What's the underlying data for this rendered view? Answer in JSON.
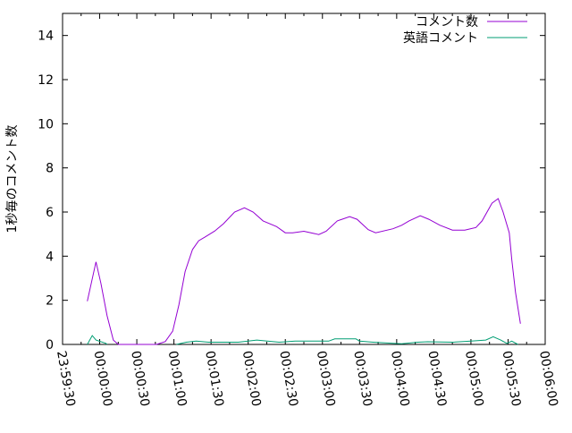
{
  "chart_data": {
    "type": "line",
    "title": "",
    "xlabel": "",
    "ylabel": "1秒毎のコメント数",
    "xlim": [
      "23:59:30",
      "00:06:00"
    ],
    "ylim": [
      0,
      15
    ],
    "x_ticks": [
      "23:59:30",
      "00:00:00",
      "00:00:30",
      "00:01:00",
      "00:01:30",
      "00:02:00",
      "00:02:30",
      "00:03:00",
      "00:03:30",
      "00:04:00",
      "00:04:30",
      "00:05:00",
      "00:05:30",
      "00:06:00"
    ],
    "y_ticks": [
      "0",
      "2",
      "4",
      "6",
      "8",
      "10",
      "12",
      "14"
    ],
    "legend_position": "top-right",
    "grid": false,
    "series": [
      {
        "name": "コメント数",
        "color": "#9400d3",
        "points": [
          [
            "23:59:50",
            1.96
          ],
          [
            "23:59:57",
            3.74
          ],
          [
            "00:00:01",
            2.77
          ],
          [
            "00:00:06",
            1.3
          ],
          [
            "00:00:11",
            0.2
          ],
          [
            "00:00:15",
            0
          ],
          [
            "00:00:46",
            0
          ],
          [
            "00:00:53",
            0.13
          ],
          [
            "00:00:59",
            0.6
          ],
          [
            "00:01:04",
            1.8
          ],
          [
            "00:01:09",
            3.3
          ],
          [
            "00:01:15",
            4.3
          ],
          [
            "00:01:20",
            4.7
          ],
          [
            "00:01:25",
            4.86
          ],
          [
            "00:01:33",
            5.14
          ],
          [
            "00:01:40",
            5.47
          ],
          [
            "00:01:49",
            6.0
          ],
          [
            "00:01:57",
            6.19
          ],
          [
            "00:02:04",
            6.0
          ],
          [
            "00:02:12",
            5.6
          ],
          [
            "00:02:23",
            5.34
          ],
          [
            "00:02:30",
            5.06
          ],
          [
            "00:02:36",
            5.06
          ],
          [
            "00:02:45",
            5.13
          ],
          [
            "00:02:54",
            5.02
          ],
          [
            "00:02:57",
            4.98
          ],
          [
            "00:03:03",
            5.13
          ],
          [
            "00:03:12",
            5.6
          ],
          [
            "00:03:22",
            5.79
          ],
          [
            "00:03:28",
            5.67
          ],
          [
            "00:03:37",
            5.2
          ],
          [
            "00:03:43",
            5.06
          ],
          [
            "00:03:57",
            5.24
          ],
          [
            "00:04:04",
            5.4
          ],
          [
            "00:04:10",
            5.6
          ],
          [
            "00:04:19",
            5.83
          ],
          [
            "00:04:26",
            5.67
          ],
          [
            "00:04:35",
            5.4
          ],
          [
            "00:04:45",
            5.18
          ],
          [
            "00:04:55",
            5.18
          ],
          [
            "00:05:04",
            5.3
          ],
          [
            "00:05:09",
            5.6
          ],
          [
            "00:05:17",
            6.4
          ],
          [
            "00:05:22",
            6.61
          ],
          [
            "00:05:26",
            6.0
          ],
          [
            "00:05:31",
            5.06
          ],
          [
            "00:05:33",
            3.85
          ],
          [
            "00:05:36",
            2.36
          ],
          [
            "00:05:40",
            0.94
          ]
        ]
      },
      {
        "name": "英語コメント",
        "color": "#009e73",
        "segments": [
          [
            [
              "23:59:50",
              0
            ],
            [
              "23:59:54",
              0.4
            ],
            [
              "23:59:57",
              0.2
            ],
            [
              "00:00:05",
              0.05
            ],
            [
              "00:00:06",
              0
            ]
          ],
          [
            [
              "00:01:02",
              0
            ],
            [
              "00:01:10",
              0.1
            ],
            [
              "00:01:18",
              0.15
            ],
            [
              "00:01:28",
              0.1
            ],
            [
              "00:01:52",
              0.1
            ],
            [
              "00:02:07",
              0.2
            ],
            [
              "00:02:25",
              0.1
            ],
            [
              "00:02:38",
              0.15
            ],
            [
              "00:03:05",
              0.15
            ],
            [
              "00:03:10",
              0.25
            ],
            [
              "00:03:27",
              0.25
            ],
            [
              "00:03:30",
              0.15
            ],
            [
              "00:03:41",
              0.1
            ],
            [
              "00:03:57",
              0.05
            ],
            [
              "00:04:04",
              0.03
            ],
            [
              "00:04:17",
              0.1
            ],
            [
              "00:04:25",
              0.12
            ],
            [
              "00:04:45",
              0.1
            ],
            [
              "00:05:00",
              0.15
            ],
            [
              "00:05:12",
              0.2
            ],
            [
              "00:05:18",
              0.35
            ],
            [
              "00:05:24",
              0.2
            ],
            [
              "00:05:29",
              0.05
            ],
            [
              "00:05:33",
              0.15
            ],
            [
              "00:05:38",
              0
            ]
          ]
        ]
      }
    ]
  }
}
